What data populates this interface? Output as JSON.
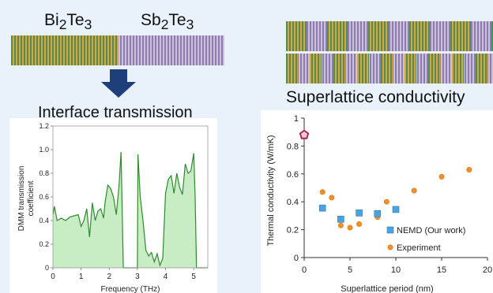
{
  "materials": {
    "left_html": "Bi<sub>2</sub>Te<sub>3</sub>",
    "right_html": "Sb<sub>2</sub>Te<sub>3</sub>"
  },
  "colors": {
    "background": "#e9f1fb",
    "bi2te3_stripe_a": "#e0a23c",
    "bi2te3_stripe_b": "#4a8f5c",
    "sb2te3_stripe_a": "#8f7bb0",
    "sb2te3_stripe_b": "#c9c2d9",
    "arrow": "#1f3f7a",
    "dmm_fill": "#c8ecc4",
    "dmm_line": "#2e8b2e",
    "nemd_marker": "#4aa3df",
    "experiment_marker": "#f0902a",
    "bulk_marker": "#a0204a"
  },
  "superlattice_title": "Superlattice conductivity",
  "chart_data": [
    {
      "type": "area",
      "title": "Interface transmission",
      "xlabel": "Frequency (THz)",
      "ylabel_lines": [
        "DMM transmission",
        "coefficient"
      ],
      "xlim": [
        0,
        5.5
      ],
      "ylim": [
        0,
        1.2
      ],
      "xticks": [
        0,
        1,
        2,
        3,
        4,
        5
      ],
      "yticks": [
        0,
        0.2,
        0.4,
        0.6,
        0.8,
        1.0,
        1.2
      ],
      "ytick_labels": [
        "0",
        "0.2",
        "0.4",
        "0.6",
        "0.8",
        "1.0",
        "1.2"
      ],
      "grid": false,
      "x": [
        0,
        0.05,
        0.15,
        0.3,
        0.45,
        0.6,
        0.75,
        0.9,
        1.0,
        1.1,
        1.2,
        1.3,
        1.4,
        1.5,
        1.6,
        1.7,
        1.8,
        1.85,
        1.95,
        2.05,
        2.15,
        2.25,
        2.35,
        2.42,
        2.5,
        3.0,
        3.02,
        3.1,
        3.2,
        3.3,
        3.4,
        3.5,
        3.6,
        3.7,
        3.8,
        3.9,
        4.0,
        4.1,
        4.2,
        4.3,
        4.4,
        4.5,
        4.6,
        4.7,
        4.8,
        4.9,
        5.0,
        5.05,
        5.1,
        5.5
      ],
      "y": [
        0.45,
        0.52,
        0.4,
        0.42,
        0.4,
        0.43,
        0.44,
        0.45,
        0.35,
        0.4,
        0.5,
        0.26,
        0.55,
        0.4,
        0.48,
        0.5,
        0.42,
        0.55,
        0.7,
        0.67,
        0.6,
        0.45,
        0.7,
        0.98,
        0.0,
        0.0,
        0.96,
        0.6,
        0.4,
        0.15,
        0.1,
        0.13,
        0.05,
        0.12,
        0.02,
        0.08,
        0.63,
        0.75,
        0.78,
        0.63,
        0.8,
        0.68,
        0.62,
        0.88,
        0.8,
        0.82,
        0.97,
        0.6,
        0.0,
        0.0
      ]
    },
    {
      "type": "scatter",
      "xlabel": "Superlattice period (nm)",
      "ylabel": "Thermal conductivity (W/mK)",
      "xlim": [
        0,
        20
      ],
      "ylim": [
        0,
        1
      ],
      "xticks": [
        0,
        5,
        10,
        15,
        20
      ],
      "xtick_labels": [
        "0",
        "5",
        "10",
        "15",
        "20"
      ],
      "yticks": [
        0,
        0.2,
        0.4,
        0.6,
        0.8,
        1
      ],
      "ytick_labels": [
        "0",
        "0.2",
        "0.4",
        "0.6",
        "0.8",
        "1"
      ],
      "grid": false,
      "legend_position": "bottom-right",
      "series": [
        {
          "name": "NEMD (Our work)",
          "marker": "square",
          "x": [
            2,
            4,
            6,
            8,
            10
          ],
          "y": [
            0.355,
            0.275,
            0.32,
            0.315,
            0.345
          ]
        },
        {
          "name": "Experiment",
          "marker": "circle",
          "x": [
            2,
            3,
            4,
            5,
            6,
            8,
            9,
            12,
            15,
            18
          ],
          "y": [
            0.47,
            0.43,
            0.23,
            0.215,
            0.24,
            0.29,
            0.4,
            0.48,
            0.58,
            0.63
          ]
        },
        {
          "marker": "pentagon",
          "x": [
            0
          ],
          "y": [
            0.88
          ]
        }
      ]
    }
  ]
}
